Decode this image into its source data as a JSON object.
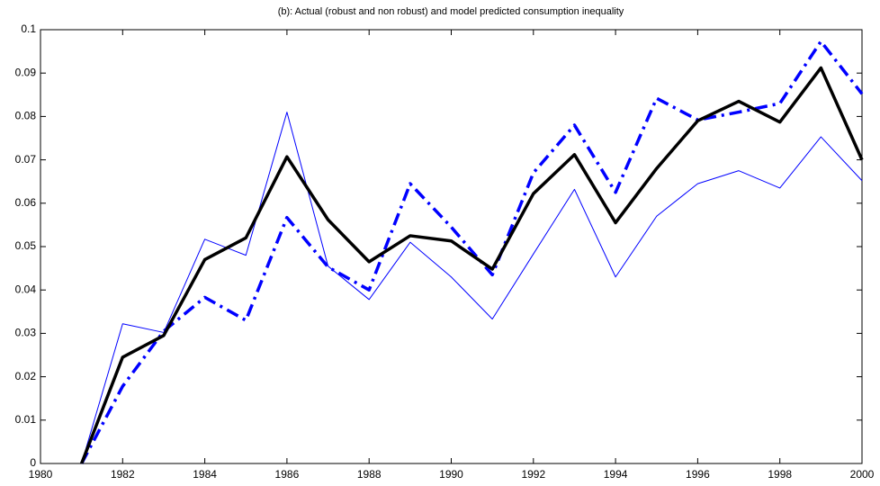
{
  "chart_data": {
    "type": "line",
    "title": "(b): Actual (robust and non robust) and model predicted consumption inequality",
    "x": [
      1981,
      1982,
      1983,
      1984,
      1985,
      1986,
      1987,
      1988,
      1989,
      1990,
      1991,
      1992,
      1993,
      1994,
      1995,
      1996,
      1997,
      1998,
      1999,
      2000
    ],
    "series": [
      {
        "color": "#0000ff",
        "style": "thin",
        "values": [
          0,
          0.0322,
          0.0302,
          0.0517,
          0.048,
          0.081,
          0.0455,
          0.0378,
          0.051,
          0.043,
          0.0333,
          0.0483,
          0.0632,
          0.043,
          0.057,
          0.0645,
          0.0675,
          0.0635,
          0.0753,
          0.0652
        ]
      },
      {
        "color": "#0000ff",
        "style": "dashdot",
        "values": [
          0,
          0.0178,
          0.0305,
          0.0383,
          0.033,
          0.0567,
          0.0453,
          0.04,
          0.0645,
          0.0545,
          0.0435,
          0.067,
          0.078,
          0.0625,
          0.0842,
          0.0792,
          0.081,
          0.083,
          0.0973,
          0.0852
        ]
      },
      {
        "color": "#000000",
        "style": "thick",
        "values": [
          0,
          0.0245,
          0.0295,
          0.047,
          0.052,
          0.0707,
          0.0562,
          0.0465,
          0.0525,
          0.0513,
          0.0448,
          0.0622,
          0.0712,
          0.0555,
          0.068,
          0.079,
          0.0835,
          0.0787,
          0.0912,
          0.07
        ]
      }
    ],
    "xlim": [
      1980,
      2000
    ],
    "xticks": [
      1980,
      1982,
      1984,
      1986,
      1988,
      1990,
      1992,
      1994,
      1996,
      1998,
      2000
    ],
    "ylim": [
      0,
      0.1
    ],
    "yticks": [
      0,
      0.01,
      0.02,
      0.03,
      0.04,
      0.05,
      0.06,
      0.07,
      0.08,
      0.09,
      0.1
    ],
    "grid": false
  }
}
